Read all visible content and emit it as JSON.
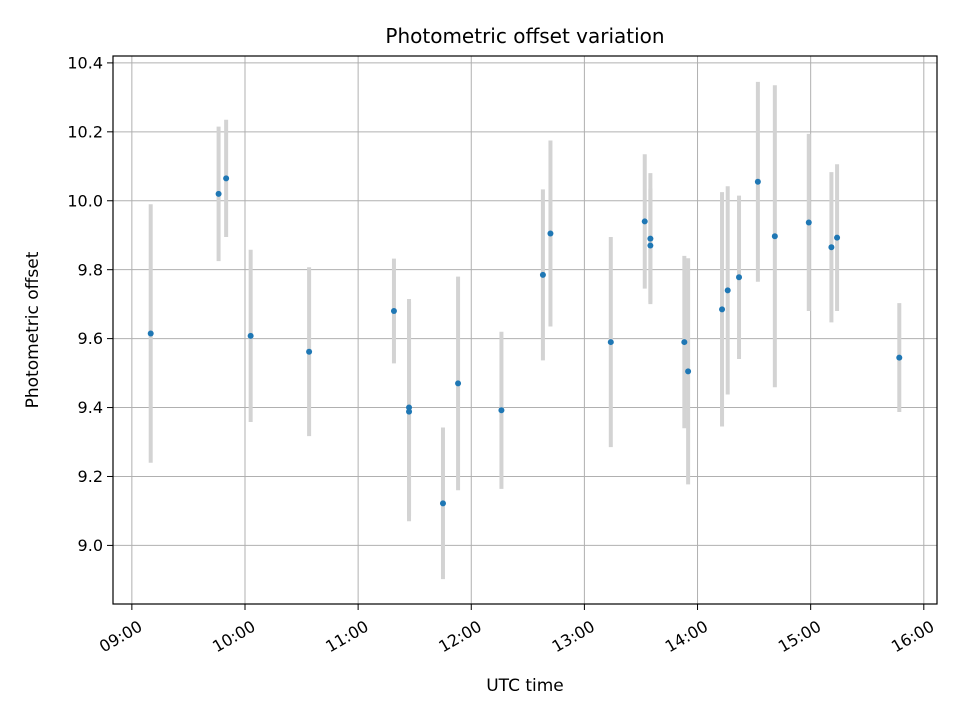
{
  "chart_data": {
    "type": "scatter",
    "title": "Photometric offset variation",
    "xlabel": "UTC time",
    "ylabel": "Photometric offset",
    "xlim": [
      "08:50",
      "16:07"
    ],
    "ylim": [
      8.83,
      10.42
    ],
    "x_ticks": [
      "09:00",
      "10:00",
      "11:00",
      "12:00",
      "13:00",
      "14:00",
      "15:00",
      "16:00"
    ],
    "y_ticks": [
      "9.0",
      "9.2",
      "9.4",
      "9.6",
      "9.8",
      "10.0",
      "10.2",
      "10.4"
    ],
    "grid": true,
    "point_color": "#1f77b4",
    "errorbar_color": "#d3d3d3",
    "points": [
      {
        "x": "09:10",
        "y": 9.615,
        "err": 0.375
      },
      {
        "x": "09:46",
        "y": 10.02,
        "err": 0.195
      },
      {
        "x": "09:50",
        "y": 10.065,
        "err": 0.17
      },
      {
        "x": "10:03",
        "y": 9.608,
        "err": 0.25
      },
      {
        "x": "10:34",
        "y": 9.562,
        "err": 0.245
      },
      {
        "x": "11:19",
        "y": 9.68,
        "err": 0.152
      },
      {
        "x": "11:27",
        "y": 9.4,
        "err": 0.315
      },
      {
        "x": "11:27",
        "y": 9.388,
        "err": 0.318
      },
      {
        "x": "11:45",
        "y": 9.122,
        "err": 0.22
      },
      {
        "x": "11:53",
        "y": 9.47,
        "err": 0.31
      },
      {
        "x": "12:16",
        "y": 9.392,
        "err": 0.228
      },
      {
        "x": "12:38",
        "y": 9.785,
        "err": 0.248
      },
      {
        "x": "12:42",
        "y": 9.905,
        "err": 0.27
      },
      {
        "x": "13:14",
        "y": 9.59,
        "err": 0.305
      },
      {
        "x": "13:32",
        "y": 9.94,
        "err": 0.195
      },
      {
        "x": "13:35",
        "y": 9.87,
        "err": 0.165
      },
      {
        "x": "13:35",
        "y": 9.89,
        "err": 0.19
      },
      {
        "x": "13:53",
        "y": 9.59,
        "err": 0.25
      },
      {
        "x": "13:55",
        "y": 9.505,
        "err": 0.328
      },
      {
        "x": "14:13",
        "y": 9.685,
        "err": 0.34
      },
      {
        "x": "14:16",
        "y": 9.74,
        "err": 0.302
      },
      {
        "x": "14:22",
        "y": 9.778,
        "err": 0.237
      },
      {
        "x": "14:32",
        "y": 10.055,
        "err": 0.29
      },
      {
        "x": "14:41",
        "y": 9.897,
        "err": 0.438
      },
      {
        "x": "14:59",
        "y": 9.937,
        "err": 0.257
      },
      {
        "x": "15:11",
        "y": 9.865,
        "err": 0.218
      },
      {
        "x": "15:14",
        "y": 9.893,
        "err": 0.213
      },
      {
        "x": "15:47",
        "y": 9.545,
        "err": 0.158
      }
    ]
  }
}
